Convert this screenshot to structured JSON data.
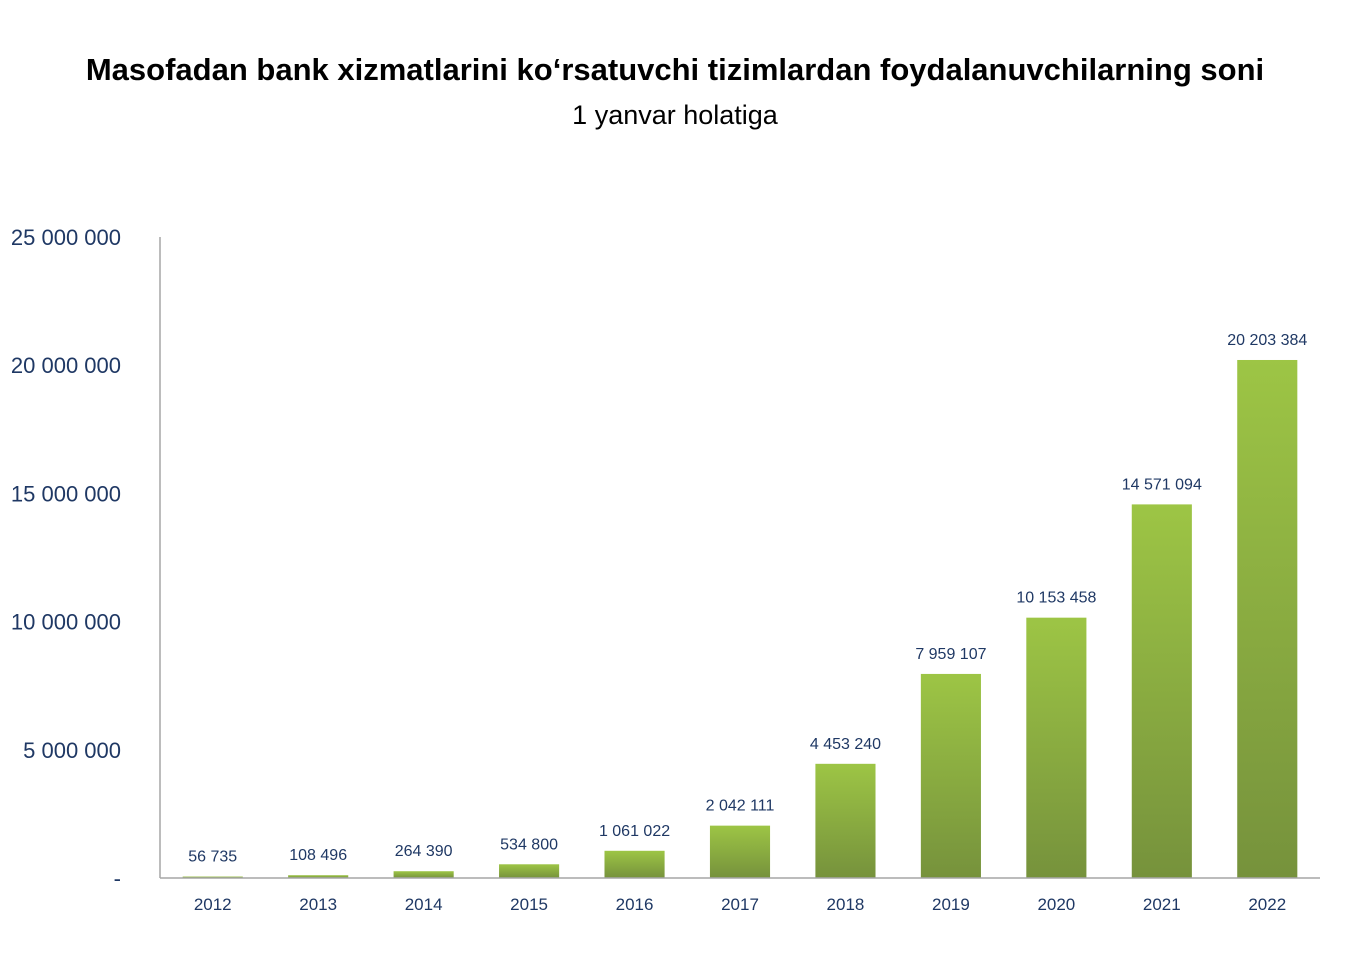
{
  "chart_data": {
    "type": "bar",
    "title": "Masofadan bank xizmatlarini ko‘rsatuvchi tizimlardan foydalanuvchilarning soni",
    "subtitle": "1 yanvar holatiga",
    "categories": [
      "2012",
      "2013",
      "2014",
      "2015",
      "2016",
      "2017",
      "2018",
      "2019",
      "2020",
      "2021",
      "2022"
    ],
    "values": [
      56735,
      108496,
      264390,
      534800,
      1061022,
      2042111,
      4453240,
      7959107,
      10153458,
      14571094,
      20203384
    ],
    "data_labels": [
      "56 735",
      "108 496",
      "264 390",
      "534 800",
      "1 061 022",
      "2 042 111",
      "4 453 240",
      "7 959 107",
      "10 153 458",
      "14 571 094",
      "20 203 384"
    ],
    "yticks": [
      0,
      5000000,
      10000000,
      15000000,
      20000000,
      25000000
    ],
    "ytick_labels": [
      "-",
      "5 000 000",
      "10 000 000",
      "15 000 000",
      "20 000 000",
      "25 000 000"
    ],
    "ylim": [
      0,
      25000000
    ],
    "xlabel": "",
    "ylabel": "",
    "grid": false,
    "legend": "none",
    "bar_color_top": "#9dc545",
    "bar_color_bottom": "#76923c",
    "label_color": "#1f3864"
  }
}
